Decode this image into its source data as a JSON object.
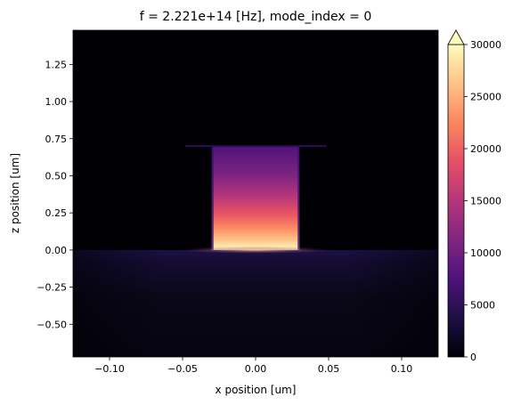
{
  "chart_data": {
    "type": "heatmap",
    "title": "f = 2.221e+14 [Hz], mode_index = 0",
    "xlabel": "x position [um]",
    "ylabel": "z position [um]",
    "xlim": [
      -0.125,
      0.125
    ],
    "ylim": [
      -0.72,
      1.48
    ],
    "x_ticks": [
      -0.1,
      -0.05,
      0.0,
      0.05,
      0.1
    ],
    "x_tick_labels": [
      "−0.10",
      "−0.05",
      "0.00",
      "0.05",
      "0.10"
    ],
    "y_ticks": [
      -0.5,
      -0.25,
      0.0,
      0.25,
      0.5,
      0.75,
      1.0,
      1.25
    ],
    "y_tick_labels": [
      "−0.50",
      "−0.25",
      "0.00",
      "0.25",
      "0.50",
      "0.75",
      "1.00",
      "1.25"
    ],
    "colormap": "magma",
    "colorbar": {
      "min": 0,
      "max": 30000,
      "extend": "max",
      "ticks": [
        0,
        5000,
        10000,
        15000,
        20000,
        25000,
        30000
      ],
      "tick_labels": [
        "0",
        "5000",
        "10000",
        "15000",
        "20000",
        "25000",
        "30000"
      ]
    },
    "regions": [
      {
        "name": "waveguide core",
        "x_range": [
          -0.03,
          0.03
        ],
        "z_range": [
          0.0,
          0.7
        ],
        "value_at_top": 4000,
        "value_at_bottom": 30000
      },
      {
        "name": "substrate",
        "x_range": [
          -0.125,
          0.125
        ],
        "z_range": [
          -0.72,
          0.0
        ],
        "value_near_interface": 2500,
        "value_far": 600
      },
      {
        "name": "cladding",
        "x_range": [
          -0.125,
          0.125
        ],
        "z_range": [
          0.7,
          1.48
        ],
        "value": 0
      }
    ]
  }
}
